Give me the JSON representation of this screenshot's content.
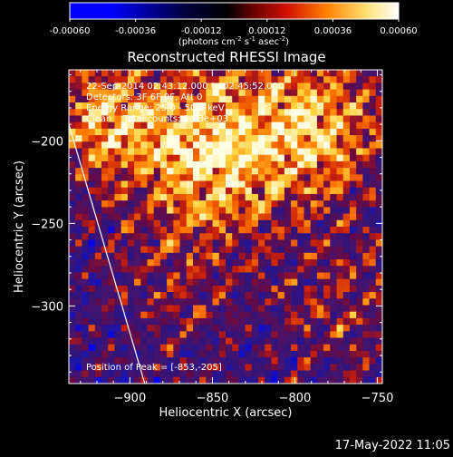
{
  "colorbar": {
    "ticks": [
      -0.0006,
      -0.00036,
      -0.00012,
      0.00012,
      0.00036,
      0.0006
    ],
    "tick_labels": [
      "-0.00060",
      "-0.00036",
      "-0.00012",
      "0.00012",
      "0.00036",
      "0.00060"
    ],
    "units_prefix": "(photons cm",
    "units_exp1": "-2",
    "units_mid": " s",
    "units_exp2": "-1",
    "units_mid2": " asec",
    "units_exp3": "-2",
    "units_suffix": ")",
    "colors": [
      "#0000ff",
      "#000080",
      "#000000",
      "#800000",
      "#ff0000",
      "#ffa000",
      "#ffff80",
      "#ffffff"
    ]
  },
  "chart_data": {
    "type": "heatmap",
    "title": "Reconstructed RHESSI Image",
    "xlabel": "Heliocentric X (arcsec)",
    "ylabel": "Heliocentric Y (arcsec)",
    "xlim": [
      -937,
      -747
    ],
    "ylim": [
      -347,
      -157
    ],
    "xticks": [
      -900,
      -850,
      -800,
      -750
    ],
    "yticks": [
      -200,
      -250,
      -300
    ],
    "xtick_labels": [
      "−900",
      "−850",
      "−800",
      "−750"
    ],
    "ytick_labels": [
      "−200",
      "−250",
      "−300"
    ],
    "colormap": "red-temperature",
    "limb_line": {
      "x": [
        -937,
        -891
      ],
      "y": [
        -190,
        -347
      ],
      "color": "#ffffff"
    },
    "peak": {
      "x": -853,
      "y": -205
    },
    "annotations": [
      "22-Sep-2014 02:43:12.000 to 02:45:52.000",
      "Detectors: 3F 6F 9F, Att 0",
      "Energy Range: 25.0 - 50.0 keV",
      "Clean    Total counts: 1.23e+03",
      "Position of Peak = [-853,-205]"
    ]
  },
  "timestamp": "17-May-2022 11:05"
}
